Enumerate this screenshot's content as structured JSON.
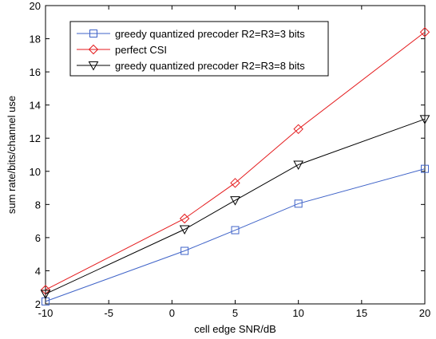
{
  "chart_data": {
    "type": "line",
    "title": "",
    "xlabel": "cell edge SNR/dB",
    "ylabel": "sum rate/bits/channel use",
    "xlim": [
      -10,
      20
    ],
    "ylim": [
      2,
      20
    ],
    "xticks": [
      -10,
      -5,
      0,
      5,
      10,
      15,
      20
    ],
    "yticks": [
      2,
      4,
      6,
      8,
      10,
      12,
      14,
      16,
      18,
      20
    ],
    "grid": false,
    "legend_position": "top-left",
    "series": [
      {
        "name": "greedy quantized precoder R2=R3=3 bits",
        "color": "#3f63c8",
        "marker": "square",
        "x": [
          -10,
          1,
          5,
          10,
          20
        ],
        "y": [
          2.15,
          5.2,
          6.45,
          8.05,
          10.15
        ]
      },
      {
        "name": "perfect CSI",
        "color": "#e41a1c",
        "marker": "diamond",
        "x": [
          -10,
          1,
          5,
          10,
          20
        ],
        "y": [
          2.85,
          7.15,
          9.3,
          12.55,
          18.4
        ]
      },
      {
        "name": "greedy quantized precoder R2=R3=8 bits",
        "color": "#000000",
        "marker": "triangle-down",
        "x": [
          -10,
          1,
          5,
          10,
          20
        ],
        "y": [
          2.6,
          6.5,
          8.25,
          10.4,
          13.15
        ]
      }
    ]
  }
}
